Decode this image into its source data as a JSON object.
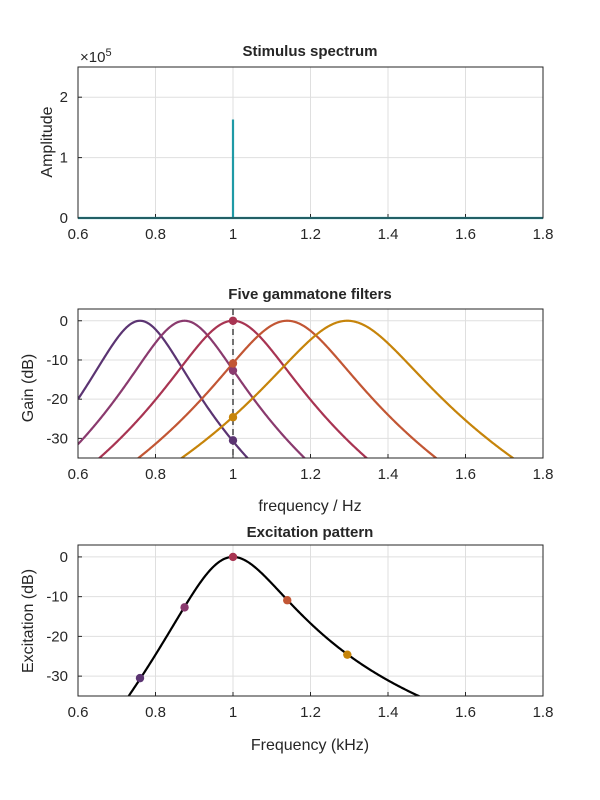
{
  "chart_data": [
    {
      "type": "line",
      "title": "Stimulus spectrum",
      "xlabel": "",
      "ylabel": "Amplitude",
      "exponent_label": "×10",
      "exponent_power": "5",
      "xlim": [
        0.6,
        1.8
      ],
      "ylim": [
        0,
        2.5
      ],
      "xticks": [
        0.6,
        0.8,
        1.0,
        1.2,
        1.4,
        1.6,
        1.8
      ],
      "xtick_labels": [
        "0.6",
        "0.8",
        "1",
        "1.2",
        "1.4",
        "1.6",
        "1.8"
      ],
      "yticks": [
        0,
        1,
        2
      ],
      "ytick_labels": [
        "0",
        "1",
        "2"
      ],
      "grid": true,
      "color": "#1f9aa6",
      "series": [
        {
          "x": [
            0.6,
            1.0,
            1.0,
            1.0,
            1.8
          ],
          "values": [
            0,
            0,
            1.63,
            0,
            0
          ]
        }
      ]
    },
    {
      "type": "line",
      "title": "Five gammatone filters",
      "xlabel": "frequency / Hz",
      "ylabel": "Gain (dB)",
      "xlim": [
        0.6,
        1.8
      ],
      "ylim": [
        -35,
        3
      ],
      "xticks": [
        0.6,
        0.8,
        1.0,
        1.2,
        1.4,
        1.6,
        1.8
      ],
      "xtick_labels": [
        "0.6",
        "0.8",
        "1",
        "1.2",
        "1.4",
        "1.6",
        "1.8"
      ],
      "yticks": [
        0,
        -10,
        -20,
        -30
      ],
      "ytick_labels": [
        "0",
        "-10",
        "-20",
        "-30"
      ],
      "grid": true,
      "stimulus_line_x": 1.0,
      "filters": [
        {
          "center": 0.76,
          "color": "#5b3472",
          "gain_at_stimulus": -30.5
        },
        {
          "center": 0.875,
          "color": "#8a3a6e",
          "gain_at_stimulus": -12.7
        },
        {
          "center": 1.0,
          "color": "#a83452",
          "gain_at_stimulus": 0
        },
        {
          "center": 1.14,
          "color": "#c25634",
          "gain_at_stimulus": -10.9
        },
        {
          "center": 1.295,
          "color": "#c6840a",
          "gain_at_stimulus": -24.6
        }
      ]
    },
    {
      "type": "line",
      "title": "Excitation pattern",
      "xlabel": "Frequency (kHz)",
      "ylabel": "Excitation (dB)",
      "xlim": [
        0.6,
        1.8
      ],
      "ylim": [
        -35,
        3
      ],
      "xticks": [
        0.6,
        0.8,
        1.0,
        1.2,
        1.4,
        1.6,
        1.8
      ],
      "xtick_labels": [
        "0.6",
        "0.8",
        "1",
        "1.2",
        "1.4",
        "1.6",
        "1.8"
      ],
      "yticks": [
        0,
        -10,
        -20,
        -30
      ],
      "ytick_labels": [
        "0",
        "-10",
        "-20",
        "-30"
      ],
      "grid": true,
      "line_color": "#000000",
      "points": [
        {
          "x": 0.76,
          "y": -30.5,
          "color": "#5b3472"
        },
        {
          "x": 0.875,
          "y": -12.7,
          "color": "#8a3a6e"
        },
        {
          "x": 1.0,
          "y": 0,
          "color": "#a83452"
        },
        {
          "x": 1.14,
          "y": -10.9,
          "color": "#c25634"
        },
        {
          "x": 1.295,
          "y": -24.6,
          "color": "#c6840a"
        }
      ]
    }
  ]
}
